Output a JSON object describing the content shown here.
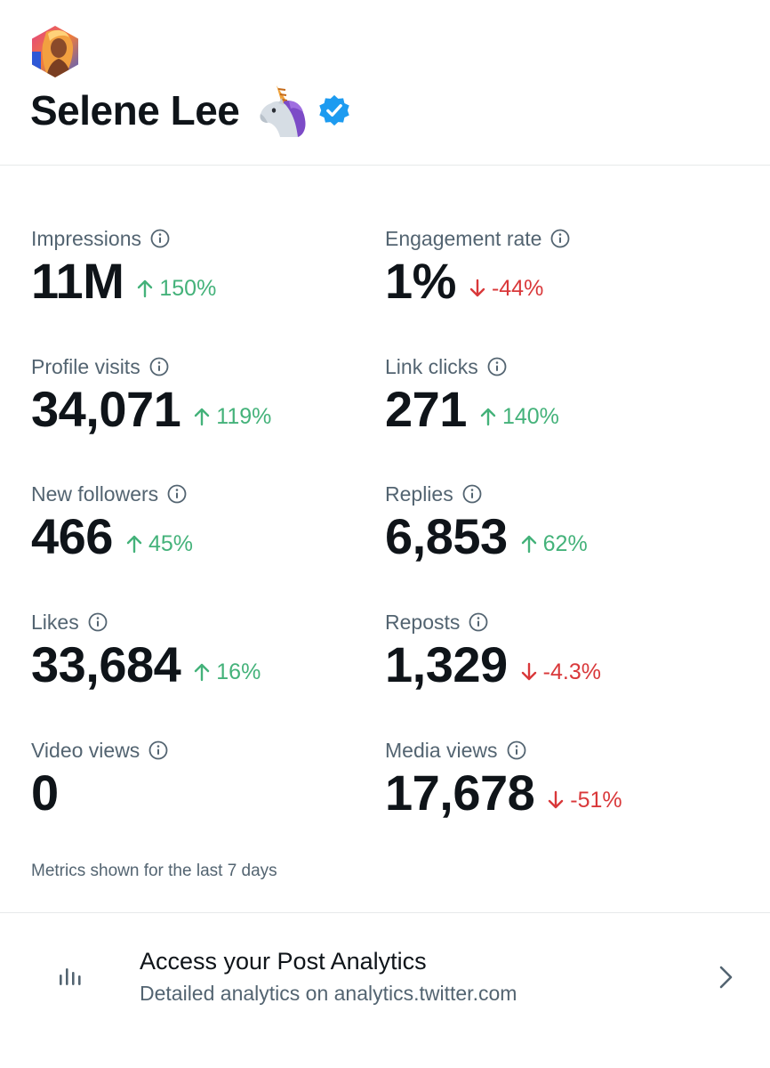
{
  "profile": {
    "display_name": "Selene Lee",
    "verified": true,
    "name_emoji": "unicorn-icon"
  },
  "metrics": [
    {
      "label": "Impressions",
      "value": "11M",
      "delta": "150%",
      "direction": "up"
    },
    {
      "label": "Engagement rate",
      "value": "1%",
      "delta": "-44%",
      "direction": "down"
    },
    {
      "label": "Profile visits",
      "value": "34,071",
      "delta": "119%",
      "direction": "up"
    },
    {
      "label": "Link clicks",
      "value": "271",
      "delta": "140%",
      "direction": "up"
    },
    {
      "label": "New followers",
      "value": "466",
      "delta": "45%",
      "direction": "up"
    },
    {
      "label": "Replies",
      "value": "6,853",
      "delta": "62%",
      "direction": "up"
    },
    {
      "label": "Likes",
      "value": "33,684",
      "delta": "16%",
      "direction": "up"
    },
    {
      "label": "Reposts",
      "value": "1,329",
      "delta": "-4.3%",
      "direction": "down"
    },
    {
      "label": "Video views",
      "value": "0",
      "delta": "",
      "direction": "none"
    },
    {
      "label": "Media views",
      "value": "17,678",
      "delta": "-51%",
      "direction": "down"
    }
  ],
  "footnote": "Metrics shown for the last 7 days",
  "analytics_link": {
    "title": "Access your Post Analytics",
    "subtitle": "Detailed analytics on analytics.twitter.com"
  },
  "colors": {
    "up": "#44b27a",
    "down": "#d9383a",
    "verified": "#1d9bf0",
    "secondary_text": "#536471"
  }
}
